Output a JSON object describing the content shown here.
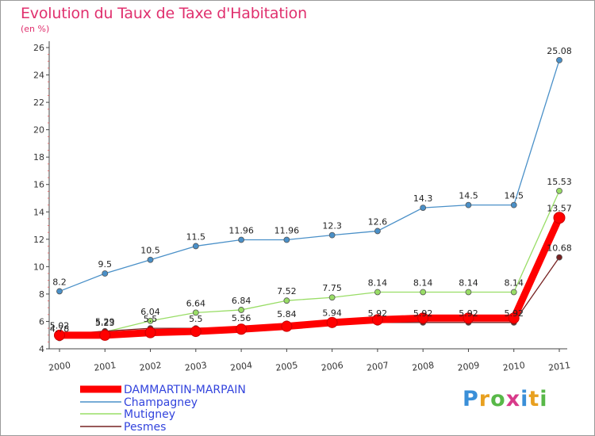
{
  "chart_data": {
    "type": "line",
    "title": "Evolution du Taux de Taxe d'Habitation",
    "subtitle": "(en %)",
    "xlabel": "",
    "ylabel": "",
    "x": [
      "2000",
      "2001",
      "2002",
      "2003",
      "2004",
      "2005",
      "2006",
      "2007",
      "2008",
      "2009",
      "2010",
      "2011"
    ],
    "ylim": [
      4,
      26
    ],
    "yticks": [
      4,
      6,
      8,
      10,
      12,
      14,
      16,
      18,
      20,
      22,
      24,
      26
    ],
    "grid": false,
    "legend_position": "bottom-left",
    "series": [
      {
        "name": "DAMMARTIN-MARPAIN",
        "color": "#ff0000",
        "values": [
          4.99,
          4.99,
          5.18,
          5.27,
          5.43,
          5.64,
          5.92,
          6.12,
          6.24,
          6.24,
          6.24,
          13.57
        ],
        "labels": [
          "",
          "",
          "",
          "",
          "",
          "",
          "",
          "",
          "",
          "",
          "",
          "13.57"
        ]
      },
      {
        "name": "Champagney",
        "color": "#4a90c8",
        "values": [
          8.2,
          9.5,
          10.5,
          11.5,
          11.96,
          11.96,
          12.3,
          12.6,
          14.3,
          14.5,
          14.5,
          25.08
        ],
        "labels": [
          "8.2",
          "9.5",
          "10.5",
          "11.5",
          "11.96",
          "11.96",
          "12.3",
          "12.6",
          "14.3",
          "14.5",
          "14.5",
          "25.08"
        ]
      },
      {
        "name": "Mutigney",
        "color": "#99dd66",
        "values": [
          4.78,
          5.23,
          6.04,
          6.64,
          6.84,
          7.52,
          7.75,
          8.14,
          8.14,
          8.14,
          8.14,
          15.53
        ],
        "labels": [
          "4.78",
          "5.23",
          "6.04",
          "6.64",
          "6.84",
          "7.52",
          "7.75",
          "8.14",
          "8.14",
          "8.14",
          "8.14",
          "15.53"
        ]
      },
      {
        "name": "Pesmes",
        "color": "#772222",
        "values": [
          5.02,
          5.29,
          5.5,
          5.5,
          5.56,
          5.84,
          5.94,
          5.92,
          5.92,
          5.92,
          5.92,
          10.68
        ],
        "labels": [
          "5.02",
          "5.29",
          "5.5",
          "5.5",
          "5.56",
          "5.84",
          "5.94",
          "5.92",
          "5.92",
          "5.92",
          "5.92",
          "10.68"
        ]
      }
    ]
  },
  "logo": {
    "letters": [
      "P",
      "r",
      "o",
      "x",
      "i",
      "t",
      "i"
    ],
    "colors": [
      "#3a8fd8",
      "#e8a020",
      "#58b848",
      "#d83a8a",
      "#3a8fd8",
      "#e8a020",
      "#58b848"
    ]
  }
}
